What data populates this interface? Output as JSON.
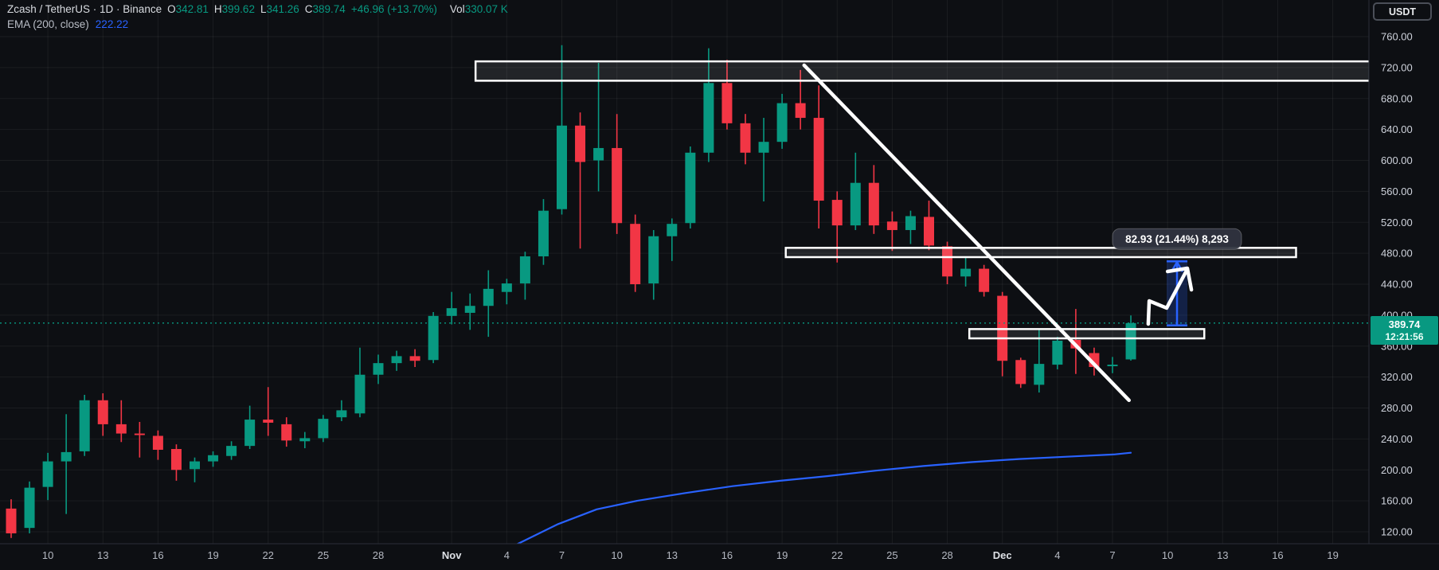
{
  "app": {
    "currency_button": "USDT"
  },
  "legend": {
    "title": "Zcash / TetherUS · 1D · Binance",
    "o_label": "O",
    "o_value": "342.81",
    "h_label": "H",
    "h_value": "399.62",
    "l_label": "L",
    "l_value": "341.26",
    "c_label": "C",
    "c_value": "389.74",
    "change": "+46.96 (+13.70%)",
    "vol_label": "Vol",
    "vol_value": "330.07 K",
    "indicator_label": "EMA (200, close)",
    "indicator_value": "222.22"
  },
  "price_badge": {
    "price": "389.74",
    "countdown": "12:21:56"
  },
  "colors": {
    "background": "#0d0f13",
    "up": "#089981",
    "down": "#f23645",
    "ema_blue": "#2962ff",
    "grid": "rgba(255,255,255,0.06)",
    "axis_text": "#cfd3dc",
    "time_text": "#b5b9c2",
    "month_text": "#dde0e5",
    "drawing_white": "#ffffff",
    "measure_fill": "rgba(41,98,255,0.22)",
    "label_box_bg": "rgba(48,52,63,0.95)",
    "separator": "#2a2e39"
  },
  "chart_data": {
    "type": "candlestick",
    "title": "Zcash / TetherUS · 1D · Binance",
    "interval": "1D",
    "price_axis": {
      "min": 120,
      "max": 760,
      "step": 40,
      "unit": "USDT"
    },
    "last_price": 389.74,
    "candles": [
      [
        "Oct 8",
        150,
        162,
        112,
        118
      ],
      [
        "Oct 9",
        125,
        185,
        118,
        177
      ],
      [
        "Oct 10",
        178,
        222,
        161,
        211
      ],
      [
        "Oct 11",
        211,
        272,
        143,
        223
      ],
      [
        "Oct 12",
        224,
        297,
        218,
        290
      ],
      [
        "Oct 13",
        290,
        299,
        244,
        259
      ],
      [
        "Oct 14",
        259,
        290,
        236,
        247
      ],
      [
        "Oct 15",
        247,
        262,
        216,
        245
      ],
      [
        "Oct 16",
        244,
        251,
        213,
        226
      ],
      [
        "Oct 17",
        227,
        233,
        186,
        200
      ],
      [
        "Oct 18",
        201,
        216,
        184,
        211
      ],
      [
        "Oct 19",
        211,
        224,
        204,
        219
      ],
      [
        "Oct 20",
        218,
        237,
        213,
        231
      ],
      [
        "Oct 21",
        231,
        283,
        227,
        265
      ],
      [
        "Oct 22",
        265,
        307,
        244,
        261
      ],
      [
        "Oct 23",
        259,
        268,
        230,
        238
      ],
      [
        "Oct 24",
        237,
        249,
        228,
        241
      ],
      [
        "Oct 25",
        241,
        271,
        236,
        266
      ],
      [
        "Oct 26",
        268,
        290,
        263,
        277
      ],
      [
        "Oct 27",
        273,
        358,
        268,
        323
      ],
      [
        "Oct 28",
        323,
        349,
        311,
        338
      ],
      [
        "Oct 29",
        338,
        354,
        328,
        347
      ],
      [
        "Oct 30",
        347,
        356,
        333,
        341
      ],
      [
        "Oct 31",
        342,
        404,
        338,
        399
      ],
      [
        "Nov 1",
        399,
        430,
        388,
        409
      ],
      [
        "Nov 2",
        403,
        428,
        381,
        412
      ],
      [
        "Nov 3",
        412,
        458,
        372,
        434
      ],
      [
        "Nov 4",
        430,
        447,
        414,
        441
      ],
      [
        "Nov 5",
        441,
        482,
        420,
        476
      ],
      [
        "Nov 6",
        476,
        550,
        465,
        535
      ],
      [
        "Nov 7",
        537,
        749,
        530,
        645
      ],
      [
        "Nov 8",
        645,
        662,
        486,
        598
      ],
      [
        "Nov 9",
        600,
        726,
        560,
        616
      ],
      [
        "Nov 10",
        616,
        660,
        505,
        519
      ],
      [
        "Nov 11",
        518,
        530,
        430,
        440
      ],
      [
        "Nov 12",
        441,
        510,
        420,
        502
      ],
      [
        "Nov 13",
        502,
        525,
        470,
        518
      ],
      [
        "Nov 14",
        519,
        618,
        512,
        610
      ],
      [
        "Nov 15",
        610,
        745,
        598,
        700
      ],
      [
        "Nov 16",
        700,
        730,
        640,
        648
      ],
      [
        "Nov 17",
        648,
        660,
        595,
        610
      ],
      [
        "Nov 18",
        610,
        655,
        547,
        624
      ],
      [
        "Nov 19",
        624,
        686,
        615,
        674
      ],
      [
        "Nov 20",
        674,
        717,
        640,
        655
      ],
      [
        "Nov 21",
        655,
        697,
        512,
        548
      ],
      [
        "Nov 22",
        549,
        560,
        468,
        516
      ],
      [
        "Nov 23",
        516,
        610,
        510,
        571
      ],
      [
        "Nov 24",
        571,
        594,
        505,
        516
      ],
      [
        "Nov 25",
        521,
        534,
        483,
        510
      ],
      [
        "Nov 26",
        510,
        535,
        492,
        528
      ],
      [
        "Nov 27",
        527,
        548,
        484,
        490
      ],
      [
        "Nov 28",
        489,
        495,
        440,
        450
      ],
      [
        "Nov 29",
        450,
        474,
        437,
        460
      ],
      [
        "Nov 30",
        460,
        465,
        424,
        430
      ],
      [
        "Dec 1",
        425,
        430,
        321,
        341
      ],
      [
        "Dec 2",
        342,
        345,
        306,
        311
      ],
      [
        "Dec 3",
        310,
        381,
        300,
        337
      ],
      [
        "Dec 4",
        336,
        372,
        330,
        367
      ],
      [
        "Dec 5",
        368,
        408,
        324,
        357
      ],
      [
        "Dec 6",
        351,
        358,
        322,
        333
      ],
      [
        "Dec 7",
        334,
        346,
        325,
        336
      ],
      [
        "Dec 8",
        342.81,
        399.62,
        341.26,
        389.74
      ]
    ],
    "ema": {
      "name": "EMA (200, close)",
      "last_value": 222.22,
      "points": [
        [
          26.1,
          87
        ],
        [
          29.8,
          130
        ],
        [
          31.9,
          149
        ],
        [
          34.1,
          160
        ],
        [
          36.7,
          170
        ],
        [
          39.3,
          179
        ],
        [
          41.9,
          186
        ],
        [
          44.5,
          192
        ],
        [
          47.1,
          199
        ],
        [
          49.7,
          205
        ],
        [
          52.3,
          210
        ],
        [
          54.9,
          214
        ],
        [
          57.5,
          217
        ],
        [
          60.1,
          220
        ],
        [
          61,
          222.22
        ]
      ]
    },
    "time_ticks": [
      {
        "i": 2,
        "label": "10"
      },
      {
        "i": 5,
        "label": "13"
      },
      {
        "i": 8,
        "label": "16"
      },
      {
        "i": 11,
        "label": "19"
      },
      {
        "i": 14,
        "label": "22"
      },
      {
        "i": 17,
        "label": "25"
      },
      {
        "i": 20,
        "label": "28"
      },
      {
        "i": 24,
        "label": "Nov",
        "month": true
      },
      {
        "i": 27,
        "label": "4"
      },
      {
        "i": 30,
        "label": "7"
      },
      {
        "i": 33,
        "label": "10"
      },
      {
        "i": 36,
        "label": "13"
      },
      {
        "i": 39,
        "label": "16"
      },
      {
        "i": 42,
        "label": "19"
      },
      {
        "i": 45,
        "label": "22"
      },
      {
        "i": 48,
        "label": "25"
      },
      {
        "i": 51,
        "label": "28"
      },
      {
        "i": 54,
        "label": "Dec",
        "month": true
      },
      {
        "i": 57,
        "label": "4"
      },
      {
        "i": 60,
        "label": "7"
      },
      {
        "i": 63,
        "label": "10"
      },
      {
        "i": 66,
        "label": "13"
      },
      {
        "i": 69,
        "label": "16"
      },
      {
        "i": 72,
        "label": "19"
      }
    ],
    "annotations": {
      "boxes": [
        {
          "name": "resistance-zone-720",
          "t1": 25.3,
          "t2": 74.0,
          "p1": 728,
          "p2": 703
        },
        {
          "name": "resistance-zone-480",
          "t1": 42.2,
          "t2": 70.0,
          "p1": 487,
          "p2": 475
        },
        {
          "name": "support-zone-375",
          "t1": 52.2,
          "t2": 65.0,
          "p1": 382,
          "p2": 370
        }
      ],
      "trendline": {
        "t1": 43.2,
        "p1": 723,
        "t2": 60.9,
        "p2": 290
      },
      "measure": {
        "t1": 62.95,
        "t2": 64.08,
        "p1": 386.7,
        "p2": 469.6,
        "label": "82.93 (21.44%) 8,293"
      },
      "brush_arrow": {
        "points": [
          [
            61.95,
            388.6
          ],
          [
            62.0,
            418.4
          ],
          [
            62.95,
            409.2
          ],
          [
            64.08,
            459.6
          ]
        ],
        "head": [
          [
            63.0,
            456.5
          ],
          [
            64.08,
            460.6
          ],
          [
            64.3,
            432.8
          ]
        ]
      },
      "current_price_line": 389.74
    }
  }
}
